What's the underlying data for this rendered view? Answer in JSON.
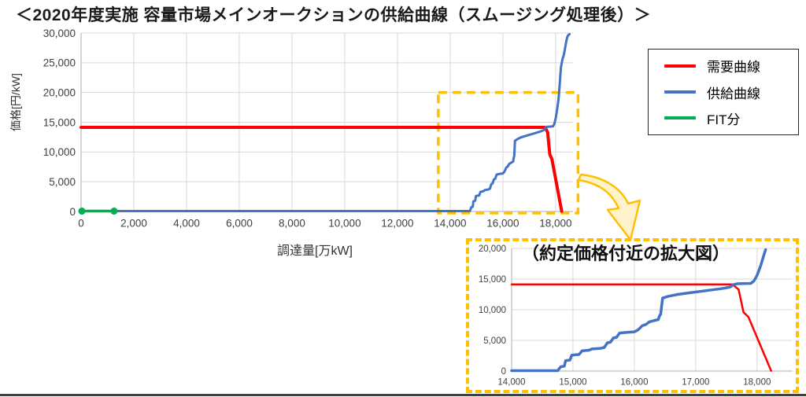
{
  "title": "＜2020年度実施 容量市場メインオークションの供給曲線（スムージング処理後）＞",
  "legend": {
    "items": [
      {
        "label": "需要曲線",
        "color": "#FF0000"
      },
      {
        "label": "供給曲線",
        "color": "#4472C4"
      },
      {
        "label": "FIT分",
        "color": "#00B050"
      }
    ]
  },
  "main_chart": {
    "xlabel": "調達量[万kW]",
    "ylabel": "価格[円/kW]"
  },
  "inset_chart": {
    "title": "（約定価格付近の拡大図）"
  },
  "colors": {
    "demand": "#FF0000",
    "supply": "#4472C4",
    "fit": "#00B050",
    "highlight": "#FFC000",
    "grid": "#D9D9D9",
    "axis": "#BFBFBF",
    "tick_text": "#404040"
  },
  "chart_data": [
    {
      "name": "main-supply-demand-chart",
      "type": "line",
      "title": "",
      "xlabel": "調達量[万kW]",
      "ylabel": "価格[円/kW]",
      "xlim": [
        0,
        18660
      ],
      "ylim": [
        0,
        30000
      ],
      "grid": true,
      "legend_position": "right",
      "x_ticks": [
        {
          "v": 0,
          "label": "0"
        },
        {
          "v": 2000,
          "label": "2,000"
        },
        {
          "v": 4000,
          "label": "4,000"
        },
        {
          "v": 6000,
          "label": "6,000"
        },
        {
          "v": 8000,
          "label": "8,000"
        },
        {
          "v": 10000,
          "label": "10,000"
        },
        {
          "v": 12000,
          "label": "12,000"
        },
        {
          "v": 14000,
          "label": "14,000"
        },
        {
          "v": 16000,
          "label": "16,000"
        },
        {
          "v": 18000,
          "label": "18,000"
        }
      ],
      "y_ticks": [
        {
          "v": 0,
          "label": "0"
        },
        {
          "v": 5000,
          "label": "5,000"
        },
        {
          "v": 10000,
          "label": "10,000"
        },
        {
          "v": 15000,
          "label": "15,000"
        },
        {
          "v": 20000,
          "label": "20,000"
        },
        {
          "v": 25000,
          "label": "25,000"
        },
        {
          "v": 30000,
          "label": "30,000"
        }
      ],
      "highlight_box": {
        "x0": 13550,
        "x1": 18850,
        "y0": 0,
        "y1": 20000,
        "color": "#FFC000"
      },
      "series": [
        {
          "name": "需要曲線",
          "color": "#FF0000",
          "width": 4,
          "points": [
            [
              0,
              14137
            ],
            [
              17600,
              14137
            ],
            [
              17700,
              13300
            ],
            [
              17780,
              9600
            ],
            [
              17860,
              8800
            ],
            [
              18230,
              50
            ]
          ]
        },
        {
          "name": "供給曲線",
          "color": "#4472C4",
          "width": 3,
          "points": [
            [
              1250,
              60
            ],
            [
              14750,
              60
            ],
            [
              14800,
              700
            ],
            [
              14860,
              800
            ],
            [
              14880,
              1700
            ],
            [
              14950,
              1800
            ],
            [
              14980,
              2600
            ],
            [
              15100,
              2700
            ],
            [
              15150,
              3300
            ],
            [
              15260,
              3400
            ],
            [
              15310,
              3600
            ],
            [
              15450,
              3700
            ],
            [
              15510,
              3850
            ],
            [
              15560,
              4600
            ],
            [
              15610,
              4700
            ],
            [
              15660,
              5400
            ],
            [
              15710,
              5500
            ],
            [
              15760,
              6200
            ],
            [
              15860,
              6300
            ],
            [
              16000,
              6400
            ],
            [
              16060,
              6700
            ],
            [
              16130,
              7400
            ],
            [
              16190,
              7600
            ],
            [
              16240,
              8000
            ],
            [
              16310,
              8200
            ],
            [
              16390,
              8400
            ],
            [
              16410,
              9000
            ],
            [
              16430,
              9300
            ],
            [
              16460,
              11900
            ],
            [
              16560,
              12200
            ],
            [
              16710,
              12500
            ],
            [
              16860,
              12700
            ],
            [
              17010,
              12900
            ],
            [
              17160,
              13100
            ],
            [
              17310,
              13300
            ],
            [
              17460,
              13500
            ],
            [
              17560,
              13700
            ],
            [
              17620,
              14100
            ],
            [
              17690,
              14250
            ],
            [
              17900,
              14300
            ],
            [
              17950,
              14700
            ],
            [
              18000,
              15600
            ],
            [
              18060,
              17200
            ],
            [
              18110,
              18900
            ],
            [
              18150,
              21000
            ],
            [
              18200,
              24200
            ],
            [
              18260,
              25600
            ],
            [
              18310,
              26300
            ],
            [
              18350,
              27200
            ],
            [
              18390,
              28300
            ],
            [
              18440,
              29300
            ],
            [
              18490,
              29700
            ],
            [
              18530,
              29800
            ]
          ]
        },
        {
          "name": "FIT分",
          "color": "#00B050",
          "width": 3.5,
          "markers": "endpoints",
          "points": [
            [
              30,
              60
            ],
            [
              1250,
              60
            ]
          ]
        }
      ]
    },
    {
      "name": "inset-zoom-chart",
      "type": "line",
      "title": "（約定価格付近の拡大図）",
      "xlabel": "",
      "ylabel": "",
      "xlim": [
        14000,
        18580
      ],
      "ylim": [
        0,
        20000
      ],
      "grid": true,
      "x_ticks": [
        {
          "v": 14000,
          "label": "14,000"
        },
        {
          "v": 15000,
          "label": "15,000"
        },
        {
          "v": 16000,
          "label": "16,000"
        },
        {
          "v": 17000,
          "label": "17,000"
        },
        {
          "v": 18000,
          "label": "18,000"
        }
      ],
      "y_ticks": [
        {
          "v": 0,
          "label": "0"
        },
        {
          "v": 5000,
          "label": "5,000"
        },
        {
          "v": 10000,
          "label": "10,000"
        },
        {
          "v": 15000,
          "label": "15,000"
        },
        {
          "v": 20000,
          "label": "20,000"
        }
      ],
      "series": [
        {
          "name": "需要曲線",
          "color": "#FF0000",
          "width": 2.5,
          "points": [
            [
              14000,
              14137
            ],
            [
              17600,
              14137
            ],
            [
              17700,
              13300
            ],
            [
              17780,
              9600
            ],
            [
              17860,
              8800
            ],
            [
              18230,
              50
            ]
          ]
        },
        {
          "name": "供給曲線",
          "color": "#4472C4",
          "width": 3.5,
          "points": [
            [
              14000,
              60
            ],
            [
              14750,
              60
            ],
            [
              14800,
              700
            ],
            [
              14860,
              800
            ],
            [
              14880,
              1700
            ],
            [
              14950,
              1800
            ],
            [
              14980,
              2600
            ],
            [
              15100,
              2700
            ],
            [
              15150,
              3300
            ],
            [
              15260,
              3400
            ],
            [
              15310,
              3600
            ],
            [
              15450,
              3700
            ],
            [
              15510,
              3850
            ],
            [
              15560,
              4600
            ],
            [
              15610,
              4700
            ],
            [
              15660,
              5400
            ],
            [
              15710,
              5500
            ],
            [
              15760,
              6200
            ],
            [
              15860,
              6300
            ],
            [
              16000,
              6400
            ],
            [
              16060,
              6700
            ],
            [
              16130,
              7400
            ],
            [
              16190,
              7600
            ],
            [
              16240,
              8000
            ],
            [
              16310,
              8200
            ],
            [
              16390,
              8400
            ],
            [
              16410,
              9000
            ],
            [
              16430,
              9300
            ],
            [
              16460,
              11900
            ],
            [
              16560,
              12200
            ],
            [
              16710,
              12500
            ],
            [
              16860,
              12700
            ],
            [
              17010,
              12900
            ],
            [
              17160,
              13100
            ],
            [
              17310,
              13300
            ],
            [
              17460,
              13500
            ],
            [
              17560,
              13700
            ],
            [
              17620,
              14100
            ],
            [
              17690,
              14250
            ],
            [
              17900,
              14300
            ],
            [
              17950,
              14700
            ],
            [
              18000,
              15600
            ],
            [
              18060,
              17200
            ],
            [
              18110,
              18900
            ],
            [
              18140,
              19800
            ]
          ]
        }
      ]
    }
  ]
}
